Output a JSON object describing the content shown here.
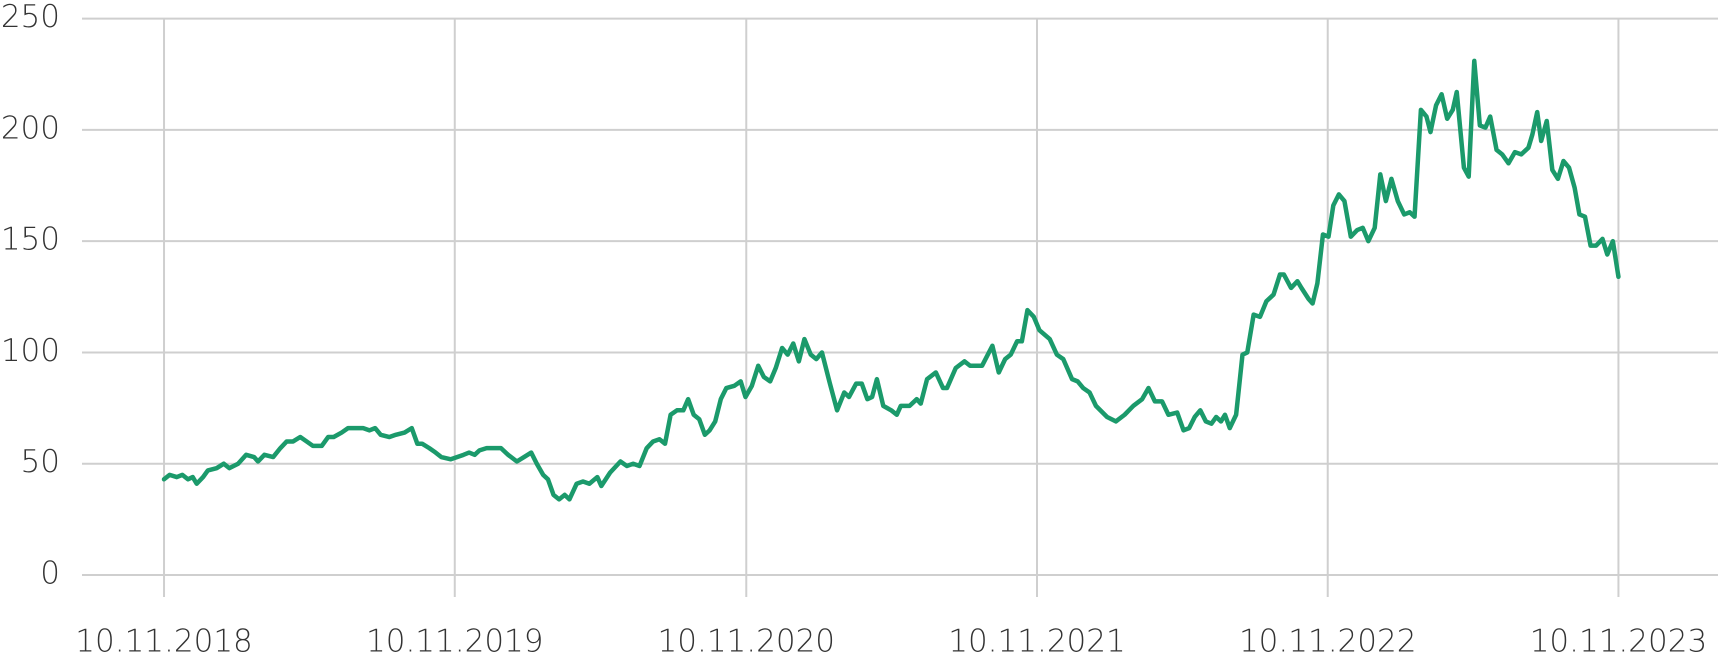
{
  "chart_data": {
    "type": "line",
    "color": "#1b9a6b",
    "grid": true,
    "xlim": [
      "2018-07-30",
      "2024-03-14"
    ],
    "xticks": [
      {
        "value": "2018-11-10",
        "label": "10.11.2018"
      },
      {
        "value": "2019-11-10",
        "label": "10.11.2019"
      },
      {
        "value": "2020-11-10",
        "label": "10.11.2020"
      },
      {
        "value": "2021-11-10",
        "label": "10.11.2021"
      },
      {
        "value": "2022-11-10",
        "label": "10.11.2022"
      },
      {
        "value": "2023-11-10",
        "label": "10.11.2023"
      }
    ],
    "ylim": [
      0,
      250
    ],
    "yticks": [
      0,
      50,
      100,
      150,
      200,
      250
    ],
    "x": [
      "2018-11-10",
      "2018-11-17",
      "2018-11-26",
      "2018-12-03",
      "2018-12-10",
      "2018-12-16",
      "2018-12-21",
      "2018-12-29",
      "2019-01-04",
      "2019-01-15",
      "2019-01-24",
      "2019-01-31",
      "2019-02-11",
      "2019-02-21",
      "2019-03-03",
      "2019-03-08",
      "2019-03-16",
      "2019-03-27",
      "2019-04-05",
      "2019-04-13",
      "2019-04-21",
      "2019-04-30",
      "2019-05-08",
      "2019-05-16",
      "2019-05-27",
      "2019-06-04",
      "2019-06-11",
      "2019-06-21",
      "2019-06-29",
      "2019-07-10",
      "2019-07-18",
      "2019-07-26",
      "2019-08-02",
      "2019-08-09",
      "2019-08-20",
      "2019-08-28",
      "2019-09-08",
      "2019-09-17",
      "2019-09-24",
      "2019-09-30",
      "2019-10-09",
      "2019-10-17",
      "2019-10-24",
      "2019-11-05",
      "2019-11-21",
      "2019-11-28",
      "2019-12-05",
      "2019-12-11",
      "2019-12-20",
      "2019-12-28",
      "2020-01-07",
      "2020-01-16",
      "2020-01-27",
      "2020-02-05",
      "2020-02-14",
      "2020-02-21",
      "2020-02-29",
      "2020-03-06",
      "2020-03-13",
      "2020-03-20",
      "2020-03-27",
      "2020-04-02",
      "2020-04-11",
      "2020-04-19",
      "2020-04-27",
      "2020-05-07",
      "2020-05-12",
      "2020-05-23",
      "2020-06-05",
      "2020-06-13",
      "2020-06-21",
      "2020-06-29",
      "2020-07-08",
      "2020-07-16",
      "2020-07-24",
      "2020-07-31",
      "2020-08-07",
      "2020-08-15",
      "2020-08-23",
      "2020-08-29",
      "2020-09-05",
      "2020-09-12",
      "2020-09-19",
      "2020-09-25",
      "2020-10-02",
      "2020-10-09",
      "2020-10-16",
      "2020-10-26",
      "2020-11-03",
      "2020-11-09",
      "2020-11-17",
      "2020-11-25",
      "2020-12-02",
      "2020-12-10",
      "2020-12-17",
      "2020-12-25",
      "2021-01-01",
      "2021-01-08",
      "2021-01-15",
      "2021-01-22",
      "2021-01-30",
      "2021-02-06",
      "2021-02-13",
      "2021-02-23",
      "2021-03-04",
      "2021-03-13",
      "2021-03-19",
      "2021-03-28",
      "2021-04-04",
      "2021-04-11",
      "2021-04-17",
      "2021-04-23",
      "2021-05-01",
      "2021-05-11",
      "2021-05-18",
      "2021-05-23",
      "2021-06-03",
      "2021-06-12",
      "2021-06-17",
      "2021-06-25",
      "2021-07-06",
      "2021-07-15",
      "2021-07-20",
      "2021-07-31",
      "2021-08-11",
      "2021-08-18",
      "2021-09-02",
      "2021-09-15",
      "2021-09-23",
      "2021-10-01",
      "2021-10-08",
      "2021-10-16",
      "2021-10-22",
      "2021-10-29",
      "2021-11-06",
      "2021-11-13",
      "2021-11-26",
      "2021-12-05",
      "2021-12-13",
      "2021-12-24",
      "2021-12-31",
      "2022-01-07",
      "2022-01-15",
      "2022-01-23",
      "2022-02-06",
      "2022-02-17",
      "2022-02-28",
      "2022-03-11",
      "2022-03-22",
      "2022-03-30",
      "2022-04-07",
      "2022-04-16",
      "2022-04-24",
      "2022-05-05",
      "2022-05-13",
      "2022-05-20",
      "2022-05-27",
      "2022-06-03",
      "2022-06-10",
      "2022-06-17",
      "2022-06-23",
      "2022-06-29",
      "2022-07-04",
      "2022-07-10",
      "2022-07-18",
      "2022-07-26",
      "2022-08-01",
      "2022-08-09",
      "2022-08-17",
      "2022-08-25",
      "2022-09-03",
      "2022-09-11",
      "2022-09-16",
      "2022-09-25",
      "2022-10-03",
      "2022-10-08",
      "2022-10-17",
      "2022-10-22",
      "2022-10-28",
      "2022-11-04",
      "2022-11-11",
      "2022-11-17",
      "2022-11-24",
      "2022-12-01",
      "2022-12-09",
      "2022-12-17",
      "2022-12-24",
      "2022-12-31",
      "2023-01-08",
      "2023-01-15",
      "2023-01-22",
      "2023-01-29",
      "2023-02-06",
      "2023-02-14",
      "2023-02-21",
      "2023-02-27",
      "2023-03-07",
      "2023-03-14",
      "2023-03-19",
      "2023-03-26",
      "2023-04-02",
      "2023-04-09",
      "2023-04-16",
      "2023-04-21",
      "2023-04-30",
      "2023-05-06",
      "2023-05-13",
      "2023-05-20",
      "2023-05-27",
      "2023-06-02",
      "2023-06-10",
      "2023-06-17",
      "2023-06-25",
      "2023-07-03",
      "2023-07-11",
      "2023-07-20",
      "2023-07-25",
      "2023-07-31",
      "2023-08-05",
      "2023-08-12",
      "2023-08-19",
      "2023-08-26",
      "2023-09-02",
      "2023-09-09",
      "2023-09-16",
      "2023-09-22",
      "2023-09-29",
      "2023-10-06",
      "2023-10-13",
      "2023-10-21",
      "2023-10-27",
      "2023-11-03",
      "2023-11-10"
    ],
    "values": [
      43,
      45,
      44,
      45,
      43,
      44,
      41,
      44,
      47,
      48,
      50,
      48,
      50,
      54,
      53,
      51,
      54,
      53,
      57,
      60,
      60,
      62,
      60,
      58,
      58,
      62,
      62,
      64,
      66,
      66,
      66,
      65,
      66,
      63,
      62,
      63,
      64,
      66,
      59,
      59,
      57,
      55,
      53,
      52,
      54,
      55,
      54,
      56,
      57,
      57,
      57,
      54,
      51,
      53,
      55,
      50,
      45,
      43,
      36,
      34,
      36,
      34,
      41,
      42,
      41,
      44,
      40,
      46,
      51,
      49,
      50,
      49,
      57,
      60,
      61,
      59,
      72,
      74,
      74,
      79,
      72,
      70,
      63,
      65,
      69,
      79,
      84,
      85,
      87,
      80,
      85,
      94,
      89,
      87,
      93,
      102,
      99,
      104,
      96,
      106,
      99,
      97,
      100,
      86,
      74,
      82,
      80,
      86,
      86,
      79,
      80,
      88,
      76,
      74,
      72,
      76,
      76,
      79,
      77,
      88,
      91,
      84,
      84,
      93,
      96,
      94,
      94,
      103,
      91,
      97,
      99,
      105,
      105,
      119,
      116,
      110,
      106,
      99,
      97,
      88,
      87,
      84,
      82,
      76,
      71,
      69,
      72,
      76,
      79,
      84,
      78,
      78,
      72,
      73,
      65,
      66,
      71,
      74,
      69,
      68,
      71,
      69,
      72,
      66,
      72,
      99,
      100,
      117,
      116,
      123,
      126,
      135,
      135,
      129,
      132,
      129,
      124,
      122,
      131,
      153,
      152,
      166,
      171,
      168,
      152,
      155,
      156,
      150,
      156,
      180,
      168,
      178,
      168,
      162,
      163,
      161,
      209,
      206,
      199,
      211,
      216,
      205,
      209,
      217,
      183,
      179,
      231,
      202,
      201,
      206,
      191,
      189,
      185,
      190,
      189,
      192,
      198,
      208,
      195,
      204,
      182,
      178,
      186,
      183,
      174,
      162,
      161,
      148,
      148,
      151,
      144,
      150,
      134
    ]
  }
}
